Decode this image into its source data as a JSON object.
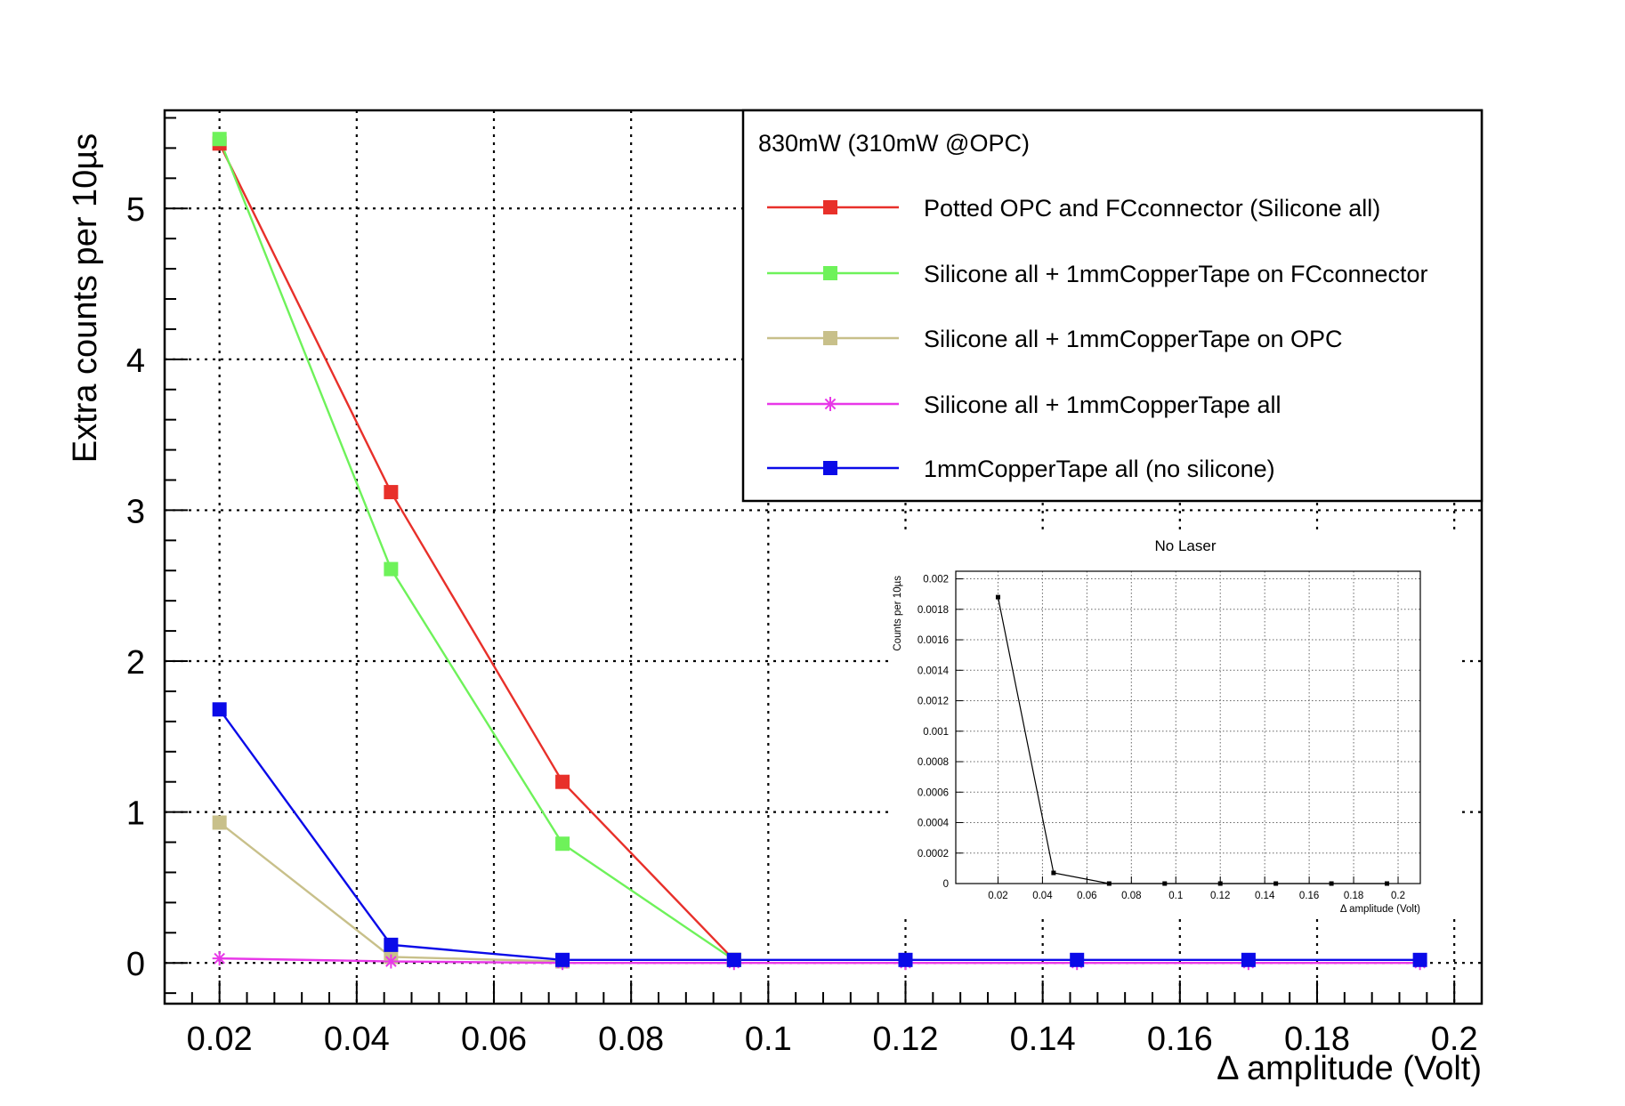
{
  "chart_data": [
    {
      "type": "line",
      "title": "",
      "xlabel": "Δ amplitude (Volt)",
      "ylabel": "Extra counts per 10µs",
      "xlim": [
        0.012,
        0.204
      ],
      "ylim": [
        -0.27,
        5.65
      ],
      "x_ticks": [
        0.02,
        0.04,
        0.06,
        0.08,
        0.1,
        0.12,
        0.14,
        0.16,
        0.18,
        0.2
      ],
      "x_tick_labels": [
        "0.02",
        "0.04",
        "0.06",
        "0.08",
        "0.1",
        "0.12",
        "0.14",
        "0.16",
        "0.18",
        "0.2"
      ],
      "y_ticks": [
        0,
        1,
        2,
        3,
        4,
        5
      ],
      "y_tick_labels": [
        "0",
        "1",
        "2",
        "3",
        "4",
        "5"
      ],
      "grid": true,
      "legend_title": "830mW (310mW @OPC)",
      "legend_position": "top-right",
      "series": [
        {
          "name": "Potted OPC and FCconnector (Silicone all)",
          "color": "#e8302a",
          "marker": "square",
          "x": [
            0.02,
            0.045,
            0.07,
            0.095
          ],
          "y": [
            5.43,
            3.12,
            1.2,
            0.02
          ]
        },
        {
          "name": "Silicone all + 1mmCopperTape on FCconnector",
          "color": "#6ef25a",
          "marker": "square",
          "x": [
            0.02,
            0.045,
            0.07,
            0.095
          ],
          "y": [
            5.46,
            2.61,
            0.79,
            0.02
          ]
        },
        {
          "name": "Silicone all + 1mmCopperTape on OPC",
          "color": "#c8c08a",
          "marker": "square",
          "x": [
            0.02,
            0.045,
            0.07
          ],
          "y": [
            0.93,
            0.04,
            0.01
          ]
        },
        {
          "name": "Silicone all + 1mmCopperTape all",
          "color": "#e838e8",
          "marker": "star",
          "x": [
            0.02,
            0.045,
            0.07,
            0.095,
            0.12,
            0.145,
            0.17,
            0.195
          ],
          "y": [
            0.03,
            0.01,
            0.0,
            0.0,
            0.0,
            0.0,
            0.0,
            0.0
          ]
        },
        {
          "name": "1mmCopperTape all (no silicone)",
          "color": "#0a0ae8",
          "marker": "square",
          "x": [
            0.02,
            0.045,
            0.07,
            0.095,
            0.12,
            0.145,
            0.17,
            0.195
          ],
          "y": [
            1.68,
            0.12,
            0.02,
            0.02,
            0.02,
            0.02,
            0.02,
            0.02
          ]
        }
      ]
    },
    {
      "type": "line",
      "title": "No Laser",
      "xlabel": "Δ amplitude (Volt)",
      "ylabel": "Counts per 10µs",
      "xlim": [
        0.001,
        0.21
      ],
      "ylim": [
        0,
        0.00205
      ],
      "x_ticks": [
        0.02,
        0.04,
        0.06,
        0.08,
        0.1,
        0.12,
        0.14,
        0.16,
        0.18,
        0.2
      ],
      "x_tick_labels": [
        "0.02",
        "0.04",
        "0.06",
        "0.08",
        "0.1",
        "0.12",
        "0.14",
        "0.16",
        "0.18",
        "0.2"
      ],
      "y_ticks": [
        0,
        0.0002,
        0.0004,
        0.0006,
        0.0008,
        0.001,
        0.0012,
        0.0014,
        0.0016,
        0.0018,
        0.002
      ],
      "y_tick_labels": [
        "0",
        "0.0002",
        "0.0004",
        "0.0006",
        "0.0008",
        "0.001",
        "0.0012",
        "0.0014",
        "0.0016",
        "0.0018",
        "0.002"
      ],
      "grid": true,
      "series": [
        {
          "color": "#000000",
          "marker": "square",
          "x": [
            0.02,
            0.045,
            0.07,
            0.095,
            0.12,
            0.145,
            0.17,
            0.195
          ],
          "y": [
            0.00188,
            7e-05,
            0.0,
            0.0,
            0.0,
            0.0,
            0.0,
            0.0
          ]
        }
      ]
    }
  ]
}
